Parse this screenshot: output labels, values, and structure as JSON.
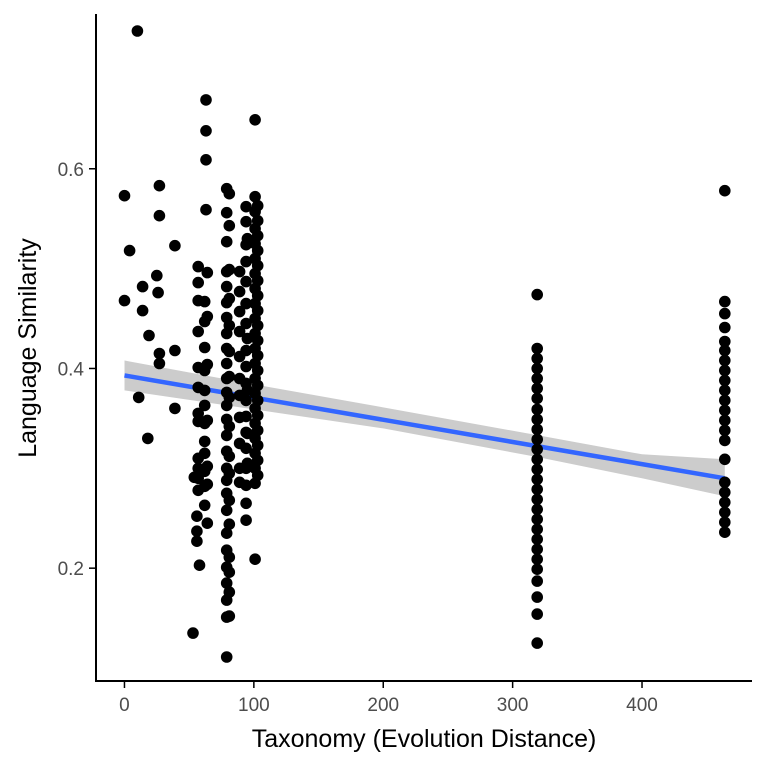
{
  "chart_data": {
    "type": "scatter",
    "xlabel": "Taxonomy (Evolution Distance)",
    "ylabel": "Language Similarity",
    "xlim": [
      -22,
      485
    ],
    "ylim": [
      0.087,
      0.755
    ],
    "x_ticks": [
      0,
      100,
      200,
      300,
      400
    ],
    "y_ticks": [
      0.2,
      0.4,
      0.6
    ],
    "x_tick_labels": [
      "0",
      "100",
      "200",
      "300",
      "400"
    ],
    "y_tick_labels": [
      "0.2",
      "0.4",
      "0.6"
    ],
    "grid": false,
    "legend": "none",
    "colors": {
      "points": "#000000",
      "trend_line": "#3366ff",
      "confidence_band": "#cccccc",
      "axis": "#000000"
    },
    "trend_line": {
      "method": "linear",
      "start": [
        0,
        0.393
      ],
      "end": [
        464,
        0.29
      ]
    },
    "confidence_band": {
      "x": [
        0,
        100,
        200,
        320,
        400,
        464
      ],
      "lower": [
        0.378,
        0.359,
        0.34,
        0.311,
        0.29,
        0.272
      ],
      "upper": [
        0.408,
        0.384,
        0.361,
        0.333,
        0.314,
        0.309
      ]
    },
    "points": [
      [
        0,
        0.573
      ],
      [
        0,
        0.468
      ],
      [
        4,
        0.518
      ],
      [
        10,
        0.738
      ],
      [
        11,
        0.371
      ],
      [
        14,
        0.482
      ],
      [
        14,
        0.458
      ],
      [
        18,
        0.33
      ],
      [
        19,
        0.433
      ],
      [
        25,
        0.493
      ],
      [
        26,
        0.476
      ],
      [
        27,
        0.583
      ],
      [
        27,
        0.553
      ],
      [
        27,
        0.415
      ],
      [
        27,
        0.405
      ],
      [
        39,
        0.523
      ],
      [
        39,
        0.418
      ],
      [
        39,
        0.36
      ],
      [
        53,
        0.135
      ],
      [
        54,
        0.291
      ],
      [
        56,
        0.227
      ],
      [
        56,
        0.237
      ],
      [
        56,
        0.252
      ],
      [
        57,
        0.278
      ],
      [
        57,
        0.29
      ],
      [
        57,
        0.3
      ],
      [
        57,
        0.31
      ],
      [
        57,
        0.347
      ],
      [
        57,
        0.355
      ],
      [
        57,
        0.381
      ],
      [
        57,
        0.401
      ],
      [
        57,
        0.437
      ],
      [
        57,
        0.468
      ],
      [
        57,
        0.486
      ],
      [
        57,
        0.502
      ],
      [
        58,
        0.203
      ],
      [
        62,
        0.263
      ],
      [
        62,
        0.282
      ],
      [
        62,
        0.297
      ],
      [
        62,
        0.315
      ],
      [
        62,
        0.327
      ],
      [
        62,
        0.345
      ],
      [
        62,
        0.363
      ],
      [
        62,
        0.378
      ],
      [
        62,
        0.398
      ],
      [
        62,
        0.421
      ],
      [
        62,
        0.447
      ],
      [
        62,
        0.467
      ],
      [
        63,
        0.559
      ],
      [
        63,
        0.609
      ],
      [
        63,
        0.638
      ],
      [
        63,
        0.669
      ],
      [
        64,
        0.245
      ],
      [
        64,
        0.284
      ],
      [
        64,
        0.302
      ],
      [
        64,
        0.348
      ],
      [
        64,
        0.404
      ],
      [
        64,
        0.452
      ],
      [
        64,
        0.496
      ],
      [
        79,
        0.111
      ],
      [
        79,
        0.151
      ],
      [
        79,
        0.168
      ],
      [
        79,
        0.185
      ],
      [
        79,
        0.201
      ],
      [
        79,
        0.218
      ],
      [
        79,
        0.235
      ],
      [
        79,
        0.258
      ],
      [
        79,
        0.275
      ],
      [
        79,
        0.288
      ],
      [
        79,
        0.3
      ],
      [
        79,
        0.317
      ],
      [
        79,
        0.333
      ],
      [
        79,
        0.349
      ],
      [
        79,
        0.363
      ],
      [
        79,
        0.376
      ],
      [
        79,
        0.39
      ],
      [
        79,
        0.405
      ],
      [
        79,
        0.42
      ],
      [
        79,
        0.435
      ],
      [
        79,
        0.451
      ],
      [
        79,
        0.466
      ],
      [
        79,
        0.482
      ],
      [
        79,
        0.497
      ],
      [
        79,
        0.527
      ],
      [
        79,
        0.556
      ],
      [
        79,
        0.58
      ],
      [
        81,
        0.152
      ],
      [
        81,
        0.176
      ],
      [
        81,
        0.196
      ],
      [
        81,
        0.211
      ],
      [
        81,
        0.244
      ],
      [
        81,
        0.268
      ],
      [
        81,
        0.295
      ],
      [
        81,
        0.312
      ],
      [
        81,
        0.342
      ],
      [
        81,
        0.371
      ],
      [
        81,
        0.392
      ],
      [
        81,
        0.417
      ],
      [
        81,
        0.443
      ],
      [
        81,
        0.47
      ],
      [
        81,
        0.499
      ],
      [
        81,
        0.543
      ],
      [
        81,
        0.575
      ],
      [
        89,
        0.286
      ],
      [
        89,
        0.3
      ],
      [
        89,
        0.325
      ],
      [
        89,
        0.351
      ],
      [
        89,
        0.373
      ],
      [
        89,
        0.39
      ],
      [
        89,
        0.412
      ],
      [
        89,
        0.437
      ],
      [
        89,
        0.457
      ],
      [
        89,
        0.477
      ],
      [
        89,
        0.497
      ],
      [
        94,
        0.248
      ],
      [
        94,
        0.265
      ],
      [
        94,
        0.283
      ],
      [
        94,
        0.3
      ],
      [
        94,
        0.32
      ],
      [
        94,
        0.336
      ],
      [
        94,
        0.352
      ],
      [
        94,
        0.368
      ],
      [
        94,
        0.385
      ],
      [
        94,
        0.402
      ],
      [
        94,
        0.418
      ],
      [
        94,
        0.445
      ],
      [
        94,
        0.465
      ],
      [
        94,
        0.487
      ],
      [
        94,
        0.507
      ],
      [
        94,
        0.524
      ],
      [
        94,
        0.547
      ],
      [
        94,
        0.562
      ],
      [
        95,
        0.305
      ],
      [
        95,
        0.335
      ],
      [
        95,
        0.378
      ],
      [
        95,
        0.43
      ],
      [
        95,
        0.53
      ],
      [
        101,
        0.209
      ],
      [
        101,
        0.285
      ],
      [
        101,
        0.3
      ],
      [
        101,
        0.315
      ],
      [
        101,
        0.33
      ],
      [
        101,
        0.345
      ],
      [
        101,
        0.36
      ],
      [
        101,
        0.375
      ],
      [
        101,
        0.39
      ],
      [
        101,
        0.405
      ],
      [
        101,
        0.42
      ],
      [
        101,
        0.435
      ],
      [
        101,
        0.45
      ],
      [
        101,
        0.465
      ],
      [
        101,
        0.48
      ],
      [
        101,
        0.495
      ],
      [
        101,
        0.51
      ],
      [
        101,
        0.525
      ],
      [
        101,
        0.54
      ],
      [
        101,
        0.557
      ],
      [
        101,
        0.572
      ],
      [
        101,
        0.649
      ],
      [
        103,
        0.293
      ],
      [
        103,
        0.308
      ],
      [
        103,
        0.323
      ],
      [
        103,
        0.338
      ],
      [
        103,
        0.353
      ],
      [
        103,
        0.368
      ],
      [
        103,
        0.383
      ],
      [
        103,
        0.398
      ],
      [
        103,
        0.413
      ],
      [
        103,
        0.428
      ],
      [
        103,
        0.443
      ],
      [
        103,
        0.458
      ],
      [
        103,
        0.473
      ],
      [
        103,
        0.488
      ],
      [
        103,
        0.503
      ],
      [
        103,
        0.518
      ],
      [
        103,
        0.533
      ],
      [
        103,
        0.548
      ],
      [
        103,
        0.563
      ],
      [
        319,
        0.125
      ],
      [
        319,
        0.154
      ],
      [
        319,
        0.171
      ],
      [
        319,
        0.187
      ],
      [
        319,
        0.199
      ],
      [
        319,
        0.209
      ],
      [
        319,
        0.219
      ],
      [
        319,
        0.229
      ],
      [
        319,
        0.239
      ],
      [
        319,
        0.249
      ],
      [
        319,
        0.259
      ],
      [
        319,
        0.269
      ],
      [
        319,
        0.279
      ],
      [
        319,
        0.289
      ],
      [
        319,
        0.299
      ],
      [
        319,
        0.309
      ],
      [
        319,
        0.319
      ],
      [
        319,
        0.329
      ],
      [
        319,
        0.339
      ],
      [
        319,
        0.349
      ],
      [
        319,
        0.359
      ],
      [
        319,
        0.37
      ],
      [
        319,
        0.38
      ],
      [
        319,
        0.39
      ],
      [
        319,
        0.4
      ],
      [
        319,
        0.41
      ],
      [
        319,
        0.42
      ],
      [
        319,
        0.474
      ],
      [
        464,
        0.236
      ],
      [
        464,
        0.246
      ],
      [
        464,
        0.256
      ],
      [
        464,
        0.266
      ],
      [
        464,
        0.276
      ],
      [
        464,
        0.286
      ],
      [
        464,
        0.309
      ],
      [
        464,
        0.328
      ],
      [
        464,
        0.338
      ],
      [
        464,
        0.348
      ],
      [
        464,
        0.358
      ],
      [
        464,
        0.368
      ],
      [
        464,
        0.378
      ],
      [
        464,
        0.388
      ],
      [
        464,
        0.398
      ],
      [
        464,
        0.408
      ],
      [
        464,
        0.418
      ],
      [
        464,
        0.427
      ],
      [
        464,
        0.441
      ],
      [
        464,
        0.455
      ],
      [
        464,
        0.467
      ],
      [
        464,
        0.578
      ]
    ]
  }
}
